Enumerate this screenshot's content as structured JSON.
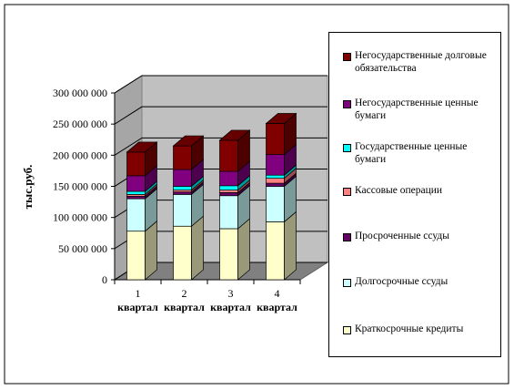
{
  "chart_data": {
    "type": "bar",
    "stacked": true,
    "three_d": true,
    "categories": [
      "1 квартал",
      "2 квартал",
      "3 квартал",
      "4 квартал"
    ],
    "category_lines": [
      [
        "1",
        "квартал"
      ],
      [
        "2",
        "квартал"
      ],
      [
        "3",
        "квартал"
      ],
      [
        "4",
        "квартал"
      ]
    ],
    "ylabel": "тыс.руб.",
    "xlabel": "",
    "ylim": [
      0,
      300000000
    ],
    "yticks": [
      0,
      50000000,
      100000000,
      150000000,
      200000000,
      250000000,
      300000000
    ],
    "ytick_labels": [
      "0",
      "50 000 000",
      "100 000 000",
      "150 000 000",
      "200 000 000",
      "250 000 000",
      "300 000 000"
    ],
    "grid": true,
    "legend_position": "right",
    "series": [
      {
        "name": "Краткосрочные кредиты",
        "color": "#ffffcc",
        "values": [
          78000000,
          86000000,
          82000000,
          93000000
        ]
      },
      {
        "name": "Долгосрочные ссуды",
        "color": "#ccffff",
        "values": [
          52000000,
          51000000,
          53000000,
          57000000
        ]
      },
      {
        "name": "Просроченные ссуды",
        "color": "#660066",
        "values": [
          4000000,
          4000000,
          5000000,
          5000000
        ]
      },
      {
        "name": "Кассовые операции",
        "color": "#ff8080",
        "values": [
          3000000,
          3000000,
          4000000,
          8000000
        ]
      },
      {
        "name": "Государственные ценные бумаги",
        "color": "#00ffff",
        "values": [
          5000000,
          6000000,
          7000000,
          5000000
        ]
      },
      {
        "name": "Негосударственные ценные бумаги",
        "color": "#800080",
        "values": [
          25000000,
          27000000,
          23000000,
          33000000
        ]
      },
      {
        "name": "Негосударственные долговые обязательства",
        "color": "#800000",
        "values": [
          38000000,
          38000000,
          50000000,
          50000000
        ]
      }
    ]
  },
  "legend_order": [
    6,
    5,
    4,
    3,
    2,
    1,
    0
  ]
}
